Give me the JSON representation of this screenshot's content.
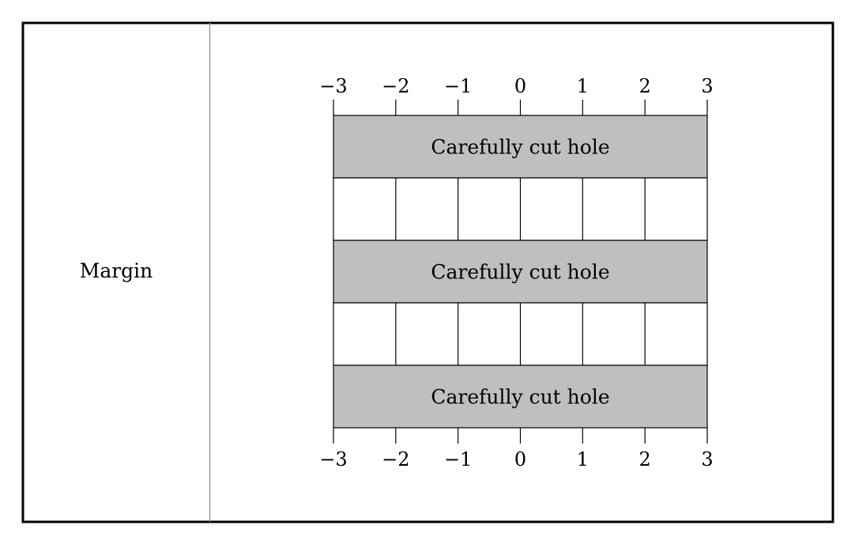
{
  "margin": {
    "label": "Margin"
  },
  "ruler": {
    "ticks": [
      -3,
      -2,
      -1,
      0,
      1,
      2,
      3
    ],
    "top_labels": [
      "−3",
      "−2",
      "−1",
      "0",
      "1",
      "2",
      "3"
    ],
    "bottom_labels": [
      "−3",
      "−2",
      "−1",
      "0",
      "1",
      "2",
      "3"
    ]
  },
  "rows": [
    {
      "type": "hole",
      "label": "Carefully cut hole"
    },
    {
      "type": "grid"
    },
    {
      "type": "hole",
      "label": "Carefully cut hole"
    },
    {
      "type": "grid"
    },
    {
      "type": "hole",
      "label": "Carefully cut hole"
    }
  ],
  "colors": {
    "hole_fill": "#bfbfbf",
    "frame": "#000000",
    "divider": "#999999",
    "background": "#ffffff"
  }
}
